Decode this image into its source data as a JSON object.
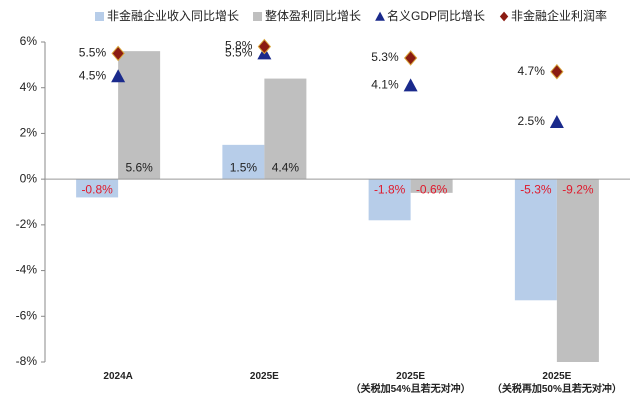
{
  "chart_data": {
    "type": "bar",
    "categories": [
      "2024A",
      "2025E",
      "2025E\n（关税加54%且若无对冲）",
      "2025E\n（关税再加50%且若无对冲）"
    ],
    "series": [
      {
        "name": "非金融企业收入同比增长",
        "type": "bar",
        "color": "#b7cde9",
        "values": [
          -0.8,
          1.5,
          -1.8,
          -5.3
        ],
        "value_labels": [
          "-0.8%",
          "1.5%",
          "-1.8%",
          "-5.3%"
        ]
      },
      {
        "name": "整体盈利同比增长",
        "type": "bar",
        "color": "#bfbfbf",
        "values": [
          5.6,
          4.4,
          -0.6,
          -9.2
        ],
        "value_labels": [
          "5.6%",
          "4.4%",
          "-0.6%",
          "-9.2%"
        ]
      },
      {
        "name": "名义GDP同比增长",
        "type": "triangle",
        "color": "#1a2a8c",
        "values": [
          4.5,
          5.5,
          4.1,
          2.5
        ],
        "value_labels": [
          "4.5%",
          "5.5%",
          "4.1%",
          "2.5%"
        ]
      },
      {
        "name": "非金融企业利润率",
        "type": "diamond",
        "color": "#8b1c12",
        "values": [
          5.5,
          5.8,
          5.3,
          4.7
        ],
        "value_labels": [
          "5.5%",
          "5.8%",
          "5.3%",
          "4.7%"
        ]
      }
    ],
    "negative_label_color": "#e0192b",
    "ylim": [
      -8,
      6
    ],
    "yticks": [
      {
        "value": -8,
        "label": "-8%"
      },
      {
        "value": -6,
        "label": "-6%"
      },
      {
        "value": -4,
        "label": "-4%"
      },
      {
        "value": -2,
        "label": "-2%"
      },
      {
        "value": 0,
        "label": "0%"
      },
      {
        "value": 2,
        "label": "2%"
      },
      {
        "value": 4,
        "label": "4%"
      },
      {
        "value": 6,
        "label": "6%"
      }
    ],
    "legend": "top"
  }
}
